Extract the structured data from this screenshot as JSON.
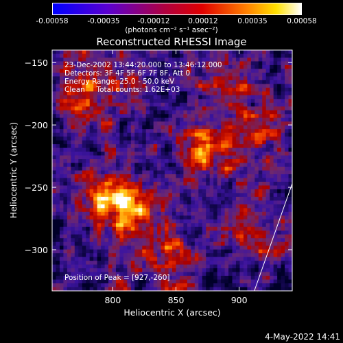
{
  "colorbar": {
    "ticks": [
      "-0.00058",
      "-0.00035",
      "-0.00012",
      "0.00012",
      "0.00035",
      "0.00058"
    ],
    "units": "(photons cm⁻² s⁻¹ asec⁻²)",
    "colormap": [
      "#0000ff",
      "#7a00c8",
      "#c80000",
      "#ff6000",
      "#ffd000",
      "#ffffff"
    ]
  },
  "chart_data": {
    "type": "heatmap",
    "title": "Reconstructed RHESSI Image",
    "xlabel": "Heliocentric X (arcsec)",
    "ylabel": "Heliocentric Y (arcsec)",
    "xlim": [
      752,
      942
    ],
    "ylim": [
      -333,
      -140
    ],
    "xticks": [
      800,
      850,
      900
    ],
    "yticks": [
      -150,
      -200,
      -250,
      -300
    ],
    "xtick_labels": [
      "800",
      "850",
      "900"
    ],
    "ytick_labels": [
      "−150",
      "−200",
      "−250",
      "−300"
    ],
    "annotations": [
      "23-Dec-2002 13:44:20.000 to 13:46:12.000",
      "Detectors: 3F 4F 5F 6F 7F 8F, Att 0",
      "Energy Range: 25.0 - 50.0 keV",
      "Clean     Total counts: 1.62E+03"
    ],
    "peak_label": "Position of Peak = [927,-260]",
    "peak": [
      927,
      -260
    ],
    "limb_line": [
      [
        912,
        -333
      ],
      [
        942,
        -247
      ]
    ]
  },
  "footer": {
    "timestamp": "4-May-2022 14:41"
  }
}
